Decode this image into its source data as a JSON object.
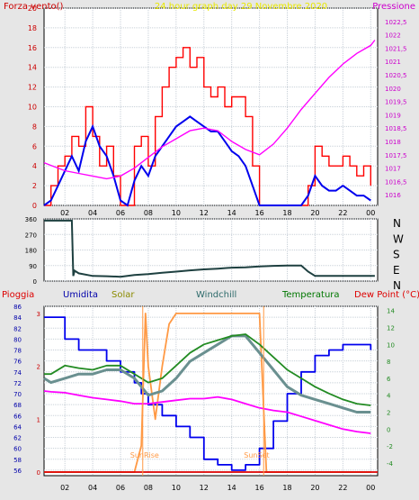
{
  "chart_data": [
    {
      "type": "line",
      "title": "24 hour graph day   29 Novembre 2020",
      "ylabel": "Forza vento()",
      "y2label": "Pressione",
      "xlim": [
        0.5,
        24.5
      ],
      "ylim": [
        0,
        20
      ],
      "y2lim": [
        1015.6,
        1023.0
      ],
      "x_ticks": [
        "02",
        "04",
        "06",
        "08",
        "10",
        "12",
        "14",
        "16",
        "18",
        "20",
        "22",
        "00"
      ],
      "y_ticks": [
        "0",
        "2",
        "4",
        "6",
        "8",
        "10",
        "12",
        "14",
        "16",
        "18",
        "20"
      ],
      "y2_ticks": [
        "1016",
        "1016,5",
        "1017",
        "1017,5",
        "1018",
        "1018,5",
        "1019",
        "1019,5",
        "1020",
        "1020,5",
        "1021",
        "1021,5",
        "1022",
        "1022,5"
      ],
      "grid": true,
      "series": [
        {
          "color": "#ff0000",
          "axis": "left",
          "x": [
            0.5,
            1,
            1.5,
            2,
            2.5,
            3,
            3.5,
            4,
            4.5,
            5,
            5.5,
            6,
            6.5,
            7,
            7.5,
            8,
            8.5,
            9,
            9.5,
            10,
            10.5,
            11,
            11.5,
            12,
            12.5,
            13,
            13.5,
            14,
            14.5,
            15,
            15.5,
            16,
            16.5,
            17,
            17.5,
            18,
            18.5,
            19,
            19.5,
            20,
            20.5,
            21,
            21.5,
            22,
            22.5,
            23,
            23.5,
            24
          ],
          "y": [
            0,
            2,
            4,
            5,
            7,
            6,
            10,
            7,
            4,
            6,
            3,
            0,
            0,
            6,
            7,
            4,
            9,
            12,
            14,
            15,
            16,
            14,
            15,
            12,
            11,
            12,
            10,
            11,
            11,
            9,
            4,
            0,
            0,
            0,
            0,
            0,
            0,
            0,
            2,
            6,
            5,
            4,
            4,
            5,
            4,
            3,
            4,
            2
          ]
        },
        {
          "color": "#0000ee",
          "axis": "left",
          "x": [
            0.5,
            1,
            1.5,
            2,
            2.5,
            3,
            3.5,
            4,
            4.5,
            5,
            5.5,
            6,
            6.5,
            7,
            7.5,
            8,
            8.5,
            9,
            9.5,
            10,
            10.5,
            11,
            11.5,
            12,
            12.5,
            13,
            13.5,
            14,
            14.5,
            15,
            15.5,
            16,
            16.5,
            17,
            17.5,
            18,
            18.5,
            19,
            19.5,
            20,
            20.5,
            21,
            21.5,
            22,
            22.5,
            23,
            23.5,
            24
          ],
          "y": [
            0,
            0.5,
            2,
            3.5,
            5,
            3.5,
            6.5,
            8,
            6,
            5,
            3,
            0.5,
            0,
            2.5,
            4,
            3,
            5,
            6,
            7,
            8,
            8.5,
            9,
            8.5,
            8,
            7.5,
            7.5,
            6.5,
            5.5,
            5,
            4,
            2,
            0,
            0,
            0,
            0,
            0,
            0,
            0,
            1,
            3,
            2,
            1.5,
            1.5,
            2,
            1.5,
            1,
            1,
            0.5
          ]
        },
        {
          "color": "#ff00ff",
          "axis": "right",
          "x": [
            0.5,
            1,
            2,
            3,
            4,
            5,
            6,
            7,
            8,
            9,
            10,
            11,
            12,
            13,
            14,
            15,
            16,
            17,
            18,
            19,
            20,
            21,
            22,
            23,
            24,
            24.3
          ],
          "y": [
            1017.2,
            1017.1,
            1016.9,
            1016.8,
            1016.7,
            1016.6,
            1016.7,
            1017.0,
            1017.4,
            1017.8,
            1018.1,
            1018.4,
            1018.5,
            1018.4,
            1018.0,
            1017.7,
            1017.5,
            1017.9,
            1018.5,
            1019.2,
            1019.8,
            1020.4,
            1020.9,
            1021.3,
            1021.6,
            1021.8
          ]
        }
      ]
    },
    {
      "type": "line",
      "xlim": [
        0.5,
        24.5
      ],
      "ylim": [
        0,
        360
      ],
      "y_ticks": [
        "0",
        "90",
        "180",
        "270",
        "360"
      ],
      "compass": [
        "N",
        "W",
        "S",
        "E",
        "N"
      ],
      "grid": true,
      "series": [
        {
          "color": "#1e4040",
          "x": [
            0.5,
            1,
            1.5,
            2,
            2.5,
            2.6,
            2.7,
            3,
            4,
            5,
            6,
            7,
            8,
            9,
            10,
            11,
            12,
            13,
            14,
            15,
            16,
            17,
            18,
            19,
            19.5,
            20,
            21,
            22,
            23,
            24,
            24.3
          ],
          "y": [
            350,
            350,
            350,
            350,
            350,
            30,
            60,
            45,
            30,
            28,
            25,
            35,
            40,
            48,
            55,
            62,
            68,
            72,
            78,
            80,
            85,
            88,
            90,
            90,
            55,
            30,
            30,
            30,
            30,
            30,
            30
          ]
        }
      ]
    },
    {
      "type": "line",
      "legend": [
        "Pioggia",
        "Umidita",
        "Solar",
        "Windchill",
        "Temperatura",
        "Dew Point (°C)"
      ],
      "xlim": [
        0.5,
        24.5
      ],
      "ylim": [
        55,
        86
      ],
      "y2lim": [
        -5.5,
        14.5
      ],
      "y_ticks": [
        "56",
        "58",
        "60",
        "62",
        "64",
        "66",
        "68",
        "70",
        "72",
        "74",
        "76",
        "78",
        "80",
        "82",
        "84",
        "86"
      ],
      "y2_ticks": [
        "-4",
        "-2",
        "0",
        "2",
        "4",
        "6",
        "8",
        "10",
        "12",
        "14"
      ],
      "rain_ticks": [
        "0",
        "1",
        "2",
        "3"
      ],
      "annotations": [
        "SunRise",
        "SunSet"
      ],
      "grid": true,
      "series": [
        {
          "name": "Umidita",
          "color": "#0000ee",
          "axis": "left",
          "x": [
            0.5,
            1,
            2,
            3,
            4,
            5,
            6,
            7,
            7.5,
            8,
            9,
            10,
            11,
            12,
            13,
            14,
            14.5,
            15,
            16,
            17,
            18,
            19,
            20,
            21,
            22,
            23,
            24
          ],
          "y": [
            84,
            84,
            80,
            78,
            78,
            76,
            74,
            72,
            70,
            68,
            66,
            64,
            62,
            58,
            57,
            56,
            56,
            57,
            60,
            65,
            70,
            74,
            77,
            78,
            79,
            79,
            78
          ]
        },
        {
          "name": "Solar",
          "color": "#ff9944",
          "axis": "rain",
          "x": [
            0.5,
            7,
            7.5,
            7.8,
            8,
            8.5,
            9,
            9.5,
            10,
            12,
            14,
            16,
            16.5,
            17,
            24
          ],
          "y": [
            0,
            0,
            0.5,
            3,
            2,
            1,
            2,
            2.8,
            3,
            3,
            3,
            3,
            0,
            0,
            0
          ]
        },
        {
          "name": "Windchill",
          "color": "#6a9090",
          "axis": "right",
          "x": [
            0.5,
            1,
            2,
            3,
            4,
            5,
            6,
            7,
            8,
            9,
            10,
            11,
            12,
            13,
            14,
            15,
            16,
            17,
            18,
            19,
            20,
            21,
            22,
            23,
            24
          ],
          "y": [
            6,
            5.5,
            6,
            6.5,
            6.5,
            7,
            7,
            6,
            4,
            4.5,
            6,
            8,
            9,
            10,
            11,
            11,
            9,
            7,
            5,
            4,
            3.5,
            3,
            2.5,
            2,
            2
          ]
        },
        {
          "name": "Temperatura",
          "color": "#228b22",
          "axis": "right",
          "x": [
            0.5,
            1,
            2,
            3,
            4,
            5,
            6,
            7,
            8,
            9,
            10,
            11,
            12,
            13,
            14,
            15,
            16,
            17,
            18,
            19,
            20,
            21,
            22,
            23,
            24
          ],
          "y": [
            6.5,
            6.5,
            7.5,
            7.2,
            7,
            7.5,
            7.5,
            6.5,
            5.5,
            6,
            7.5,
            9,
            10,
            10.5,
            11,
            11.2,
            10,
            8.5,
            7,
            6,
            5,
            4.2,
            3.5,
            3,
            2.8
          ]
        },
        {
          "name": "Dew Point (°C)",
          "color": "#ff00ff",
          "axis": "right",
          "x": [
            0.5,
            1,
            2,
            3,
            4,
            5,
            6,
            7,
            8,
            9,
            10,
            11,
            12,
            13,
            14,
            15,
            16,
            17,
            18,
            19,
            20,
            21,
            22,
            23,
            24
          ],
          "y": [
            4.5,
            4.4,
            4.3,
            4,
            3.7,
            3.5,
            3.3,
            3,
            3,
            3.2,
            3.4,
            3.6,
            3.6,
            3.8,
            3.5,
            3,
            2.5,
            2.2,
            2,
            1.5,
            1,
            0.5,
            0,
            -0.3,
            -0.5
          ]
        },
        {
          "name": "Pioggia",
          "color": "#dd0000",
          "axis": "rain",
          "x": [
            0.5,
            24.5
          ],
          "y": [
            0,
            0
          ]
        }
      ]
    }
  ]
}
